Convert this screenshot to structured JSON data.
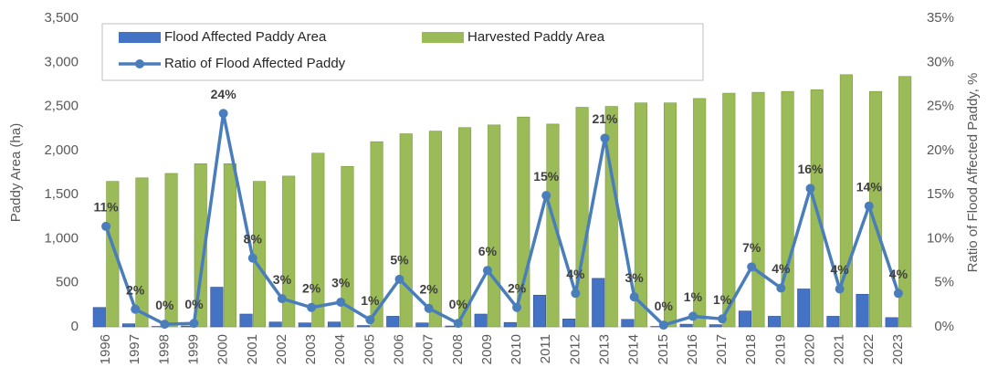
{
  "chart_data": {
    "type": "bar",
    "ylabel": "Paddy Area (ha)",
    "y2label": "Ratio of Flood Affected Paddy, %",
    "categories": [
      "1996",
      "1997",
      "1998",
      "1999",
      "2000",
      "2001",
      "2002",
      "2003",
      "2004",
      "2005",
      "2006",
      "2007",
      "2008",
      "2009",
      "2010",
      "2011",
      "2012",
      "2013",
      "2014",
      "2015",
      "2016",
      "2017",
      "2018",
      "2019",
      "2020",
      "2021",
      "2022",
      "2023"
    ],
    "series": [
      {
        "name": "Flood Affected Paddy Area",
        "type": "bar",
        "color": "#4472c4",
        "values": [
          220,
          35,
          5,
          10,
          450,
          145,
          55,
          45,
          55,
          15,
          120,
          45,
          10,
          145,
          50,
          360,
          90,
          550,
          85,
          5,
          30,
          25,
          180,
          120,
          430,
          120,
          370,
          105
        ]
      },
      {
        "name": "Harvested Paddy Area",
        "type": "bar",
        "color": "#9bbb59",
        "values": [
          1650,
          1690,
          1740,
          1850,
          1850,
          1650,
          1710,
          1970,
          1820,
          2100,
          2190,
          2220,
          2260,
          2290,
          2380,
          2300,
          2490,
          2500,
          2540,
          2540,
          2590,
          2650,
          2660,
          2670,
          2690,
          2860,
          2670,
          2840
        ]
      },
      {
        "name": "Ratio of Flood Affected Paddy",
        "type": "line",
        "axis": "y2",
        "color": "#4a7ebb",
        "values": [
          11.4,
          2.0,
          0.3,
          0.4,
          24.2,
          7.8,
          3.2,
          2.2,
          2.8,
          0.8,
          5.4,
          2.1,
          0.4,
          6.4,
          2.2,
          14.9,
          3.8,
          21.4,
          3.4,
          0.2,
          1.2,
          0.9,
          6.8,
          4.4,
          15.7,
          4.3,
          13.7,
          3.8
        ],
        "value_labels": [
          "11%",
          "2%",
          "0%",
          "0%",
          "24%",
          "8%",
          "3%",
          "2%",
          "3%",
          "1%",
          "5%",
          "2%",
          "0%",
          "6%",
          "2%",
          "15%",
          "4%",
          "21%",
          "3%",
          "0%",
          "1%",
          "1%",
          "7%",
          "4%",
          "16%",
          "4%",
          "14%",
          "4%"
        ]
      }
    ],
    "ylim": [
      0,
      3500
    ],
    "yticks": [
      0,
      500,
      {
        "value": 1000,
        "label": "1,000"
      },
      {
        "value": 1500,
        "label": "1,500"
      },
      {
        "value": 2000,
        "label": "2,000"
      },
      {
        "value": 2500,
        "label": "2,500"
      },
      {
        "value": 3000,
        "label": "3,000"
      },
      {
        "value": 3500,
        "label": "3,500"
      }
    ],
    "y2lim": [
      0,
      35
    ],
    "y2ticks": [
      {
        "value": 0,
        "label": "0%"
      },
      {
        "value": 5,
        "label": "5%"
      },
      {
        "value": 10,
        "label": "10%"
      },
      {
        "value": 15,
        "label": "15%"
      },
      {
        "value": 20,
        "label": "20%"
      },
      {
        "value": 25,
        "label": "25%"
      },
      {
        "value": 30,
        "label": "30%"
      },
      {
        "value": 35,
        "label": "35%"
      }
    ],
    "grid": false
  }
}
